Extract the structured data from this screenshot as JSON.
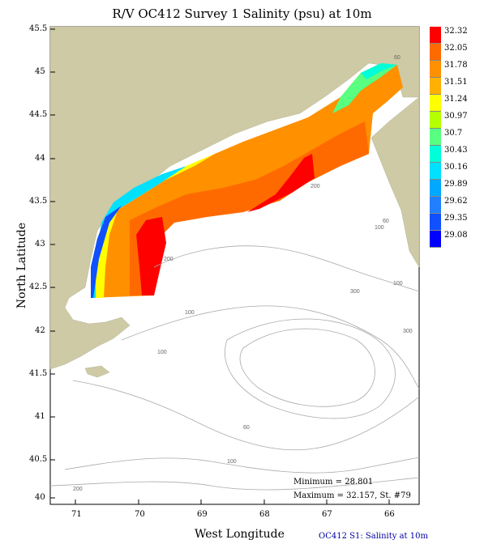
{
  "title": "R/V OC412 Survey 1 Salinity (psu) at 10m",
  "axes": {
    "xlabel": "West Longitude",
    "ylabel": "North Latitude",
    "xticks": [
      "71",
      "70",
      "69",
      "68",
      "67",
      "66"
    ],
    "yticks": [
      "45.5",
      "45",
      "44.5",
      "44",
      "43.5",
      "43",
      "42.5",
      "42",
      "41.5",
      "41",
      "40.5",
      "40"
    ]
  },
  "legend": {
    "values": [
      "32.32",
      "32.05",
      "31.78",
      "31.51",
      "31.24",
      "30.97",
      "30.7",
      "30.43",
      "30.16",
      "29.89",
      "29.62",
      "29.35",
      "29.08"
    ],
    "colors": [
      "#ff0000",
      "#ff6a00",
      "#ff9000",
      "#ffb000",
      "#ffff00",
      "#b4ff00",
      "#58ff80",
      "#00ffd8",
      "#00e0ff",
      "#00a8ff",
      "#2080ff",
      "#1050ff",
      "#0000ff"
    ]
  },
  "contour_labels": [
    "60",
    "100",
    "200",
    "200",
    "300",
    "100",
    "60",
    "100",
    "300",
    "100",
    "60",
    "100",
    "200"
  ],
  "stats": {
    "minimum": "Minimum = 28.801",
    "maximum": "Maximum = 32.157, St. #79"
  },
  "footer": "OC412 S1: Salinity at 10m",
  "colors": {
    "land": "#cdcaa5",
    "contour": "#aaaaaa"
  }
}
